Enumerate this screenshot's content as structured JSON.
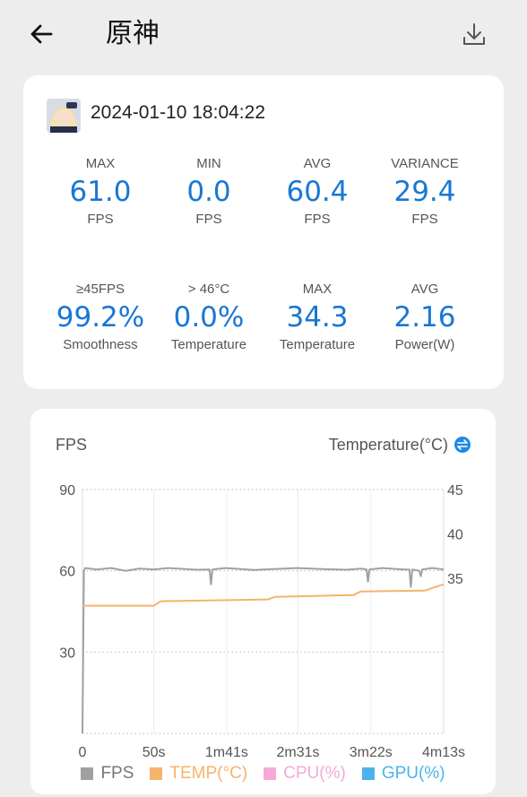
{
  "header": {
    "title": "原神"
  },
  "summary": {
    "timestamp": "2024-01-10 18:04:22",
    "row1": [
      {
        "label": "MAX",
        "value": "61.0",
        "unit": "FPS"
      },
      {
        "label": "MIN",
        "value": "0.0",
        "unit": "FPS"
      },
      {
        "label": "AVG",
        "value": "60.4",
        "unit": "FPS"
      },
      {
        "label": "VARIANCE",
        "value": "29.4",
        "unit": "FPS"
      }
    ],
    "row2": [
      {
        "label": "≥45FPS",
        "value": "99.2%",
        "unit": "Smoothness"
      },
      {
        "label": "> 46°C",
        "value": "0.0%",
        "unit": "Temperature"
      },
      {
        "label": "MAX",
        "value": "34.3",
        "unit": "Temperature"
      },
      {
        "label": "AVG",
        "value": "2.16",
        "unit": "Power(W)"
      }
    ]
  },
  "chart": {
    "left_title": "FPS",
    "right_title": "Temperature(°C)",
    "colors": {
      "fps": "#a0a0a0",
      "temp": "#f7b36b",
      "cpu": "#f6a8d8",
      "gpu": "#4ab4ea",
      "accent": "#1e88e5"
    },
    "legend": [
      "FPS",
      "TEMP(°C)",
      "CPU(%)",
      "GPU(%)"
    ]
  },
  "chart_data": {
    "type": "line",
    "x_ticks": [
      "0",
      "50s",
      "1m41s",
      "2m31s",
      "3m22s",
      "4m13s"
    ],
    "x_tick_seconds": [
      0,
      50,
      101,
      151,
      202,
      253
    ],
    "y_left_ticks": [
      "90",
      "60",
      "30"
    ],
    "y_left_range": [
      0,
      90
    ],
    "y_right_ticks": [
      "45",
      "40",
      "35"
    ],
    "y_right_range": [
      17.5,
      45
    ],
    "series": [
      {
        "name": "FPS",
        "axis": "left",
        "points": [
          [
            0,
            0
          ],
          [
            1,
            60
          ],
          [
            2,
            61
          ],
          [
            10,
            60.5
          ],
          [
            20,
            61
          ],
          [
            30,
            60
          ],
          [
            40,
            60.8
          ],
          [
            50,
            60.5
          ],
          [
            60,
            61
          ],
          [
            80,
            60.4
          ],
          [
            89,
            60.5
          ],
          [
            90,
            55
          ],
          [
            91,
            60.5
          ],
          [
            100,
            61
          ],
          [
            120,
            60.3
          ],
          [
            150,
            61
          ],
          [
            170,
            60.6
          ],
          [
            185,
            60.4
          ],
          [
            195,
            60.8
          ],
          [
            199,
            60.5
          ],
          [
            200,
            56
          ],
          [
            201,
            60.5
          ],
          [
            210,
            61
          ],
          [
            225,
            60.5
          ],
          [
            229,
            60.5
          ],
          [
            230,
            54
          ],
          [
            231,
            60.5
          ],
          [
            236,
            60
          ],
          [
            237,
            58
          ],
          [
            238,
            60.5
          ],
          [
            245,
            61
          ],
          [
            253,
            60.5
          ]
        ]
      },
      {
        "name": "TEMP(°C)",
        "axis": "right",
        "points": [
          [
            0,
            31.9
          ],
          [
            50,
            31.9
          ],
          [
            55,
            32.4
          ],
          [
            130,
            32.6
          ],
          [
            135,
            32.9
          ],
          [
            190,
            33.1
          ],
          [
            195,
            33.5
          ],
          [
            240,
            33.6
          ],
          [
            245,
            33.9
          ],
          [
            253,
            34.3
          ]
        ]
      }
    ]
  }
}
